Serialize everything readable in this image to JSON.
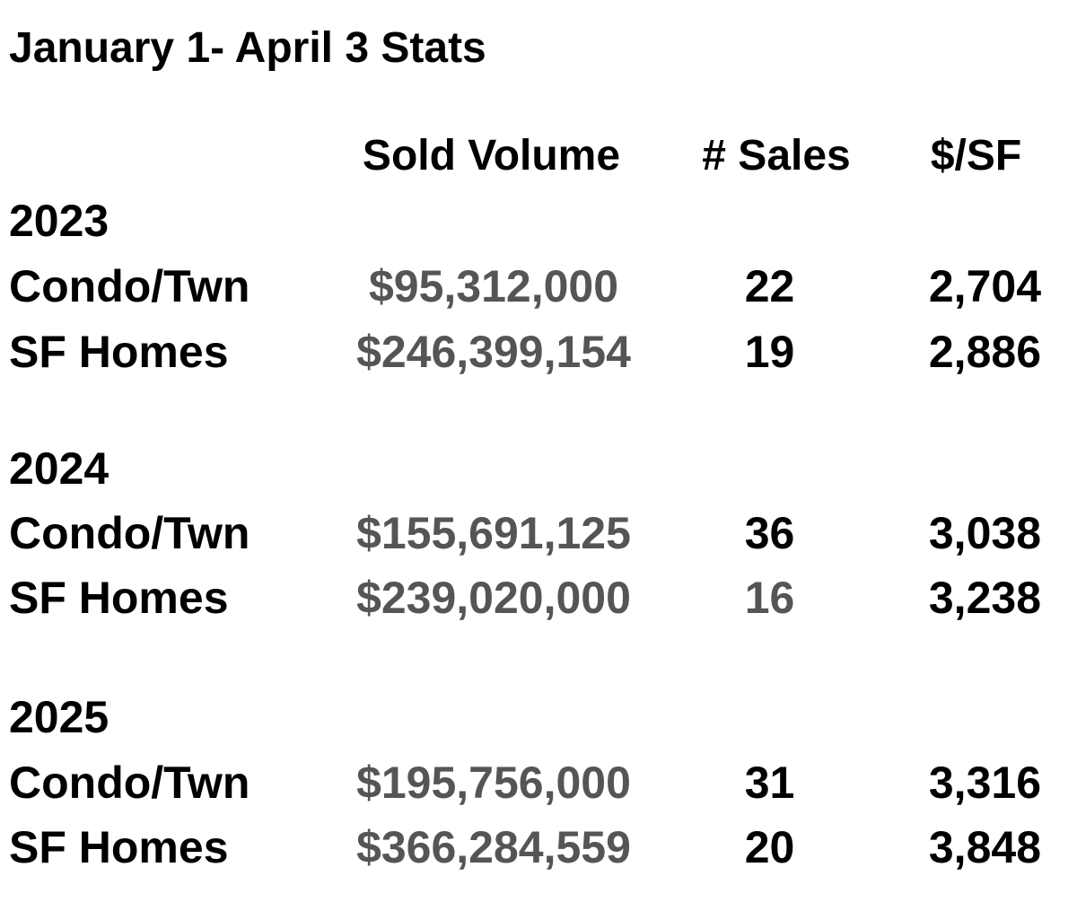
{
  "title": "January 1- April 3 Stats",
  "columns": {
    "volume": "Sold Volume",
    "sales": "# Sales",
    "price_per_sf": "$/SF"
  },
  "colors": {
    "text": "#000000",
    "muted_values": "#555555",
    "background": "#ffffff"
  },
  "groups": [
    {
      "year": "2023",
      "rows": [
        {
          "type": "Condo/Twn",
          "volume": "$95,312,000",
          "sales": "22",
          "price_per_sf": "2,704"
        },
        {
          "type": "SF Homes",
          "volume": "$246,399,154",
          "sales": "19",
          "price_per_sf": "2,886"
        }
      ]
    },
    {
      "year": "2024",
      "rows": [
        {
          "type": "Condo/Twn",
          "volume": "$155,691,125",
          "sales": "36",
          "price_per_sf": "3,038"
        },
        {
          "type": "SF Homes",
          "volume": "$239,020,000",
          "sales": "16",
          "price_per_sf": "3,238"
        }
      ]
    },
    {
      "year": "2025",
      "rows": [
        {
          "type": "Condo/Twn",
          "volume": "$195,756,000",
          "sales": "31",
          "price_per_sf": "3,316"
        },
        {
          "type": "SF Homes",
          "volume": "$366,284,559",
          "sales": "20",
          "price_per_sf": "3,848"
        }
      ]
    }
  ]
}
